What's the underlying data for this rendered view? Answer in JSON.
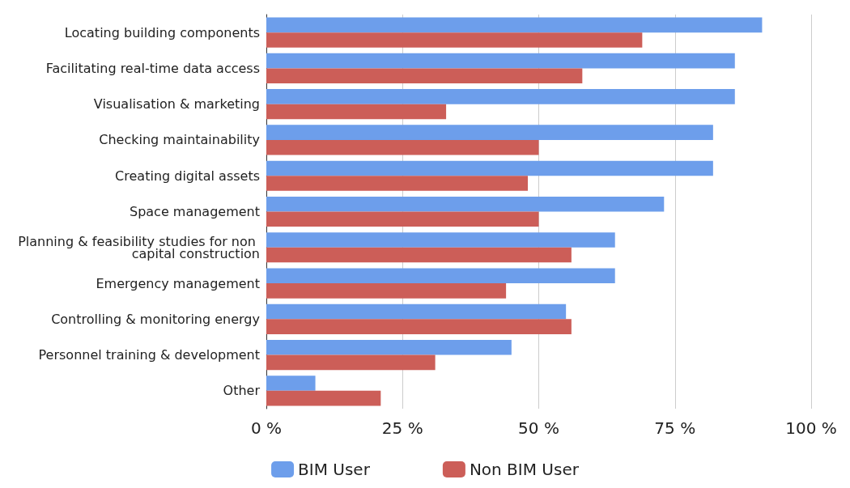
{
  "chart_data": {
    "type": "bar",
    "orientation": "horizontal",
    "categories": [
      "Locating building components",
      "Facilitating real-time data access",
      "Visualisation & marketing",
      "Checking maintainability",
      "Creating digital assets",
      "Space management",
      "Planning & feasibility studies for non capital construction",
      "Emergency management",
      "Controlling & monitoring energy",
      "Personnel training & development",
      "Other"
    ],
    "series": [
      {
        "name": "BIM User",
        "color": "#6d9eeb",
        "values": [
          91,
          86,
          86,
          82,
          82,
          73,
          64,
          64,
          55,
          45,
          9
        ]
      },
      {
        "name": "Non BIM User",
        "color": "#cc5e58",
        "values": [
          69,
          58,
          33,
          50,
          48,
          50,
          56,
          44,
          56,
          31,
          21
        ]
      }
    ],
    "xlim": [
      0,
      100
    ],
    "xticks": [
      {
        "value": 0,
        "label": "0 %"
      },
      {
        "value": 25,
        "label": "25 %"
      },
      {
        "value": 50,
        "label": "50 %"
      },
      {
        "value": 75,
        "label": "75 %"
      },
      {
        "value": 100,
        "label": "100 %"
      }
    ],
    "grid": "x",
    "legend": "bottom"
  }
}
